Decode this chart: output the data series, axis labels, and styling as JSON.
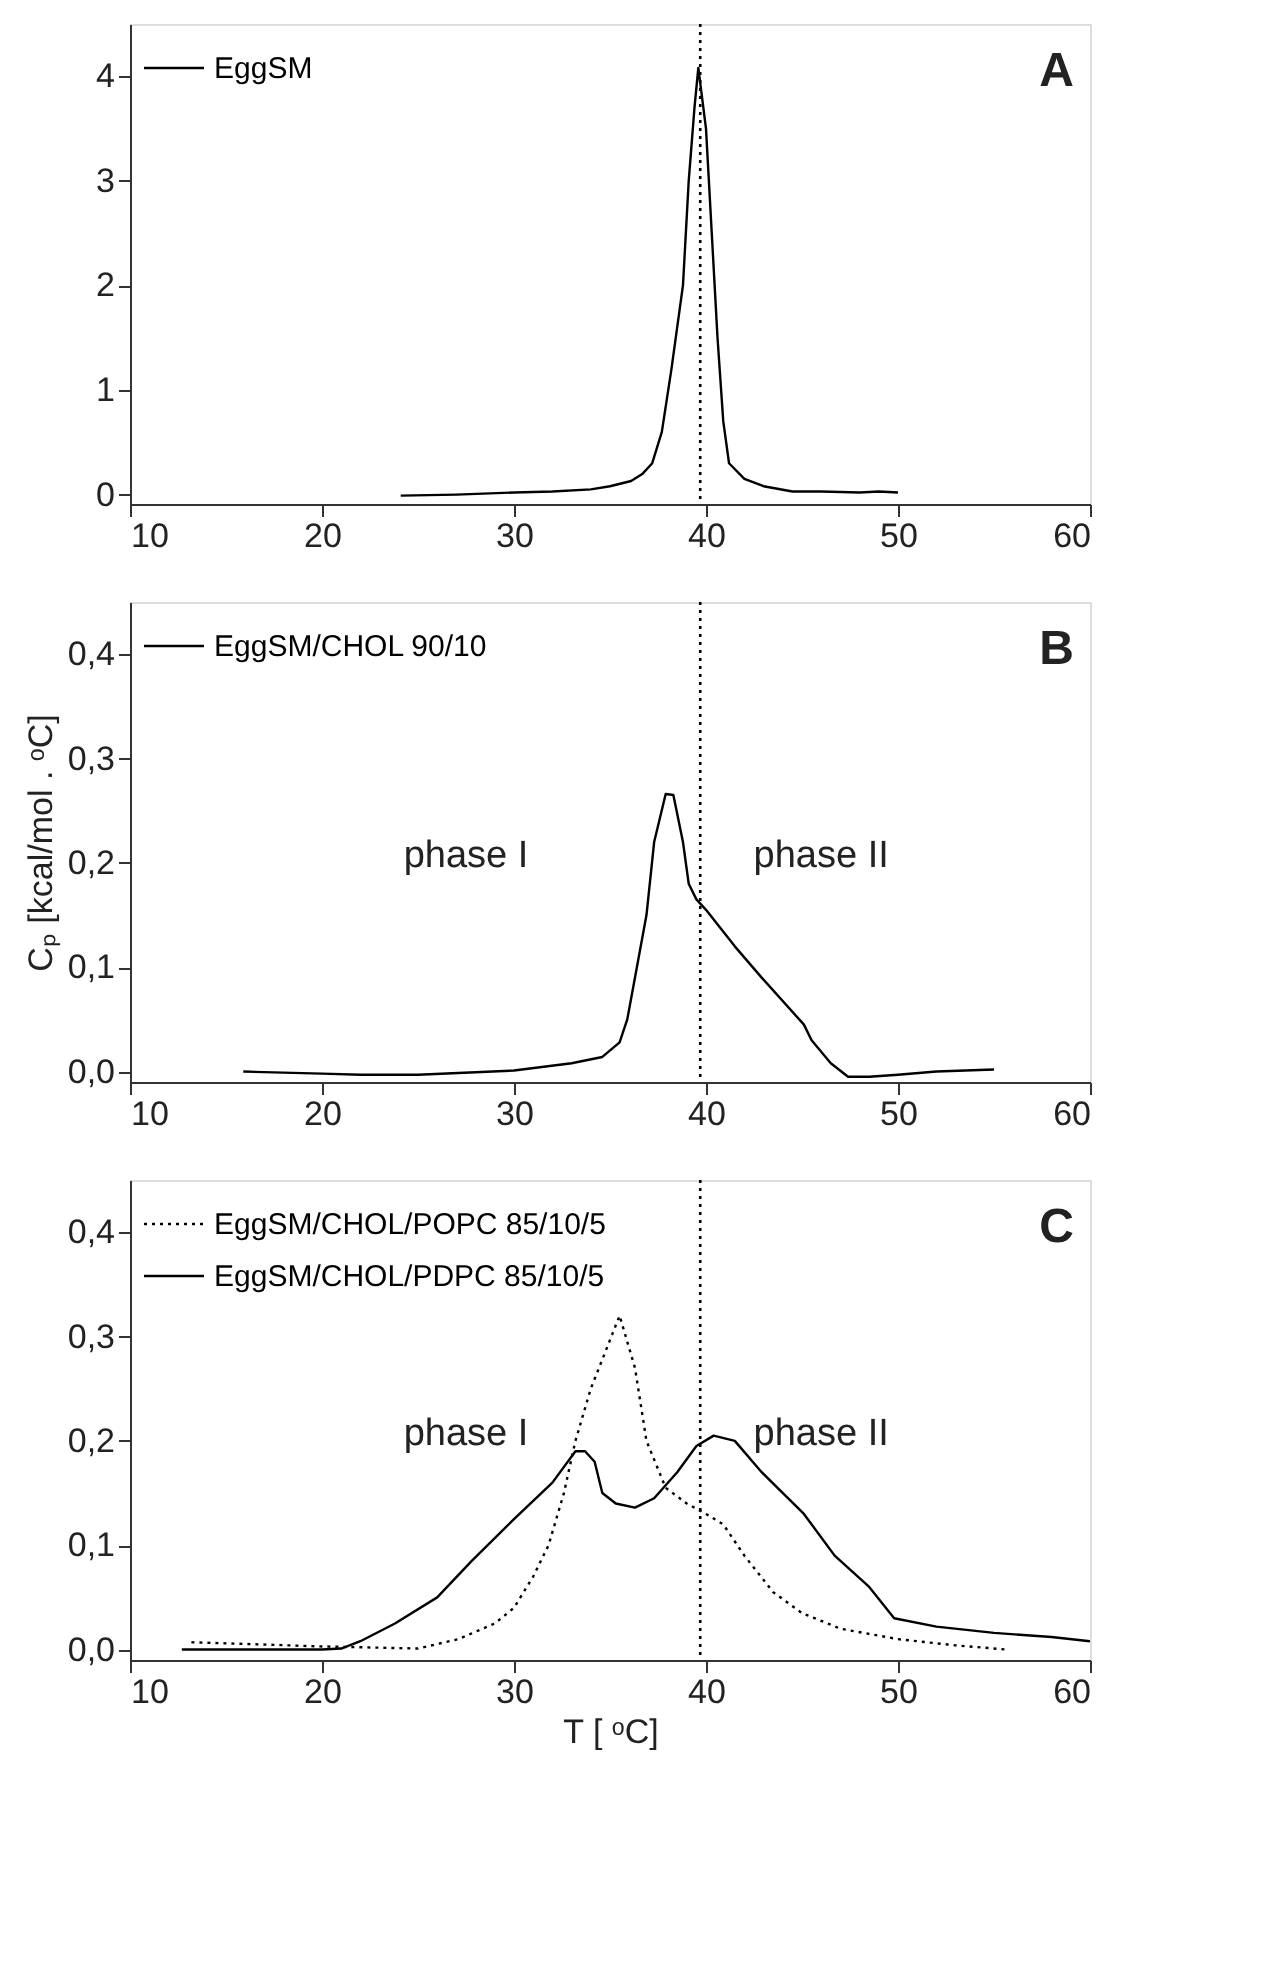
{
  "chart_data": [
    {
      "type": "line",
      "xlim": [
        10,
        60
      ],
      "xticks": [
        10,
        20,
        30,
        40,
        50,
        60
      ],
      "ylim": [
        -0.09,
        4.5
      ],
      "yticks": [
        0,
        1,
        2,
        3,
        4
      ],
      "legend": "top left",
      "grid": false,
      "annotations": [
        "A"
      ],
      "ref_lines": [
        {
          "axis": "x",
          "value": 39.7,
          "label": null,
          "color": "#000000",
          "line_style": "dotted"
        }
      ],
      "series": [
        {
          "name": "EggSM",
          "color": "#000000",
          "line_style": "solid",
          "x": [
            24.1,
            27,
            30,
            32,
            34,
            35,
            36.1,
            36.7,
            37.2,
            37.7,
            38.2,
            38.8,
            39.1,
            39.4,
            39.6,
            40.0,
            40.3,
            40.6,
            40.9,
            41.2,
            42,
            43,
            44.5,
            46,
            48,
            49,
            50
          ],
          "values": [
            -0.01,
            0.0,
            0.02,
            0.03,
            0.05,
            0.08,
            0.13,
            0.2,
            0.3,
            0.6,
            1.2,
            2.0,
            3.0,
            3.7,
            4.08,
            3.5,
            2.5,
            1.5,
            0.7,
            0.3,
            0.15,
            0.08,
            0.03,
            0.03,
            0.02,
            0.03,
            0.02
          ]
        }
      ]
    },
    {
      "type": "line",
      "xlim": [
        10,
        60
      ],
      "xticks": [
        10,
        20,
        30,
        40,
        50,
        60
      ],
      "ylim": [
        -0.01,
        0.45
      ],
      "yticks": [
        {
          "value": 0,
          "label": "0,0"
        },
        {
          "value": 0.1,
          "label": "0,1"
        },
        {
          "value": 0.2,
          "label": "0,2"
        },
        {
          "value": 0.3,
          "label": "0,3"
        },
        {
          "value": 0.4,
          "label": "0,4"
        }
      ],
      "legend": "top left",
      "grid": false,
      "ylabel": "Cₚ [kcal/mol . ᵒC]",
      "annotations": [
        "B",
        "phase I",
        "phase II"
      ],
      "ref_lines": [
        {
          "axis": "x",
          "value": 39.7,
          "label": null,
          "color": "#000000",
          "line_style": "dotted"
        }
      ],
      "series": [
        {
          "name": "EggSM/CHOL 90/10",
          "color": "#000000",
          "line_style": "solid",
          "x": [
            15.9,
            20,
            22,
            25,
            30,
            33,
            34.6,
            35.5,
            35.9,
            36.4,
            36.9,
            37.3,
            37.9,
            38.3,
            38.8,
            39.1,
            39.5,
            40,
            41.5,
            42.9,
            45.1,
            45.5,
            46.5,
            47.4,
            48.5,
            50,
            52,
            55
          ],
          "values": [
            0.0,
            -0.002,
            -0.003,
            -0.003,
            0.001,
            0.008,
            0.014,
            0.028,
            0.05,
            0.1,
            0.15,
            0.22,
            0.266,
            0.265,
            0.22,
            0.18,
            0.165,
            0.155,
            0.12,
            0.09,
            0.045,
            0.03,
            0.008,
            -0.005,
            -0.005,
            -0.003,
            0.0,
            0.002
          ]
        }
      ]
    },
    {
      "type": "line",
      "xlim": [
        10,
        60
      ],
      "xticks": [
        10,
        20,
        30,
        40,
        50,
        60
      ],
      "ylim": [
        -0.01,
        0.45
      ],
      "yticks": [
        {
          "value": 0,
          "label": "0,0"
        },
        {
          "value": 0.1,
          "label": "0,1"
        },
        {
          "value": 0.2,
          "label": "0,2"
        },
        {
          "value": 0.3,
          "label": "0,3"
        },
        {
          "value": 0.4,
          "label": "0,4"
        }
      ],
      "legend": "top left",
      "grid": false,
      "xlabel": "T [ ᵒC]",
      "annotations": [
        "C",
        "phase I",
        "phase II"
      ],
      "ref_lines": [
        {
          "axis": "x",
          "value": 39.7,
          "label": null,
          "color": "#000000",
          "line_style": "dotted"
        }
      ],
      "series": [
        {
          "name": "EggSM/CHOL/POPC 85/10/5",
          "color": "#000000",
          "line_style": "dotted",
          "x": [
            13.2,
            20,
            25,
            27.1,
            29,
            30,
            31,
            31.8,
            32.6,
            33.2,
            34,
            35.5,
            36.3,
            36.9,
            37.9,
            39,
            40,
            40.9,
            42,
            43.5,
            45,
            47,
            50,
            53,
            55.7
          ],
          "values": [
            0.007,
            0.003,
            0.001,
            0.01,
            0.025,
            0.04,
            0.07,
            0.1,
            0.15,
            0.2,
            0.25,
            0.32,
            0.27,
            0.2,
            0.155,
            0.14,
            0.13,
            0.12,
            0.09,
            0.055,
            0.035,
            0.02,
            0.01,
            0.004,
            0.0
          ]
        },
        {
          "name": "EggSM/CHOL/PDPC 85/10/5",
          "color": "#000000",
          "line_style": "solid",
          "x": [
            12.7,
            20,
            21,
            22,
            23.8,
            26,
            27.8,
            30,
            32,
            33.2,
            33.7,
            34.2,
            34.6,
            35.3,
            36.3,
            37.3,
            38.5,
            39.5,
            40.4,
            41.5,
            42.9,
            45.1,
            46.7,
            48.5,
            49.8,
            52,
            55,
            58,
            60
          ],
          "values": [
            0.0,
            0.0,
            0.001,
            0.008,
            0.025,
            0.05,
            0.085,
            0.125,
            0.16,
            0.19,
            0.19,
            0.18,
            0.15,
            0.14,
            0.136,
            0.145,
            0.17,
            0.195,
            0.205,
            0.2,
            0.17,
            0.13,
            0.09,
            0.06,
            0.03,
            0.022,
            0.016,
            0.012,
            0.008
          ]
        }
      ]
    }
  ]
}
